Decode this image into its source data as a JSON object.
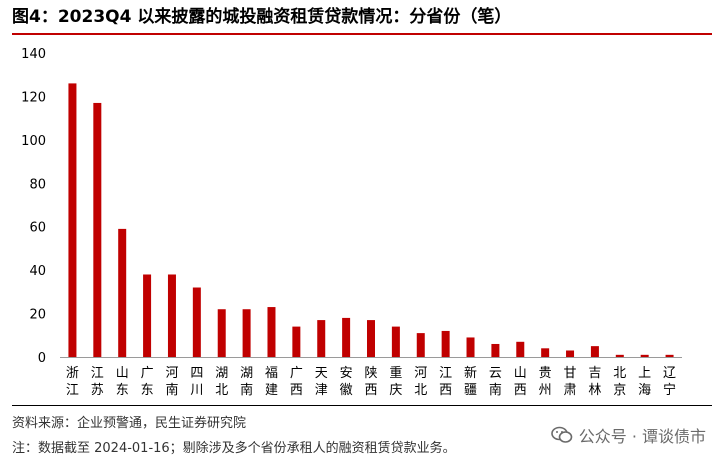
{
  "title": "图4：2023Q4 以来披露的城投融资租赁贷款情况：分省份（笔）",
  "source": "资料来源：企业预警通，民生证券研究院",
  "note": "注：数据截至 2024-01-16；剔除涉及多个省份承租人的融资租赁贷款业务。",
  "watermark": "公众号 · 谭谈债市",
  "watermark_icon": "wechat-icon",
  "colors": {
    "bar": "#c00000",
    "title_rule": "#c00000"
  },
  "chart_data": {
    "type": "bar",
    "categories": [
      "浙江",
      "江苏",
      "山东",
      "广东",
      "河南",
      "四川",
      "湖北",
      "湖南",
      "福建",
      "广西",
      "天津",
      "安徽",
      "陕西",
      "重庆",
      "河北",
      "江西",
      "新疆",
      "云南",
      "山西",
      "贵州",
      "甘肃",
      "吉林",
      "北京",
      "上海",
      "辽宁"
    ],
    "values": [
      126,
      117,
      59,
      38,
      38,
      32,
      22,
      22,
      23,
      14,
      17,
      18,
      17,
      14,
      11,
      12,
      9,
      6,
      7,
      4,
      3,
      5,
      1,
      1,
      1
    ],
    "ylim": [
      0,
      140
    ],
    "yticks": [
      0,
      20,
      40,
      60,
      80,
      100,
      120,
      140
    ],
    "grid": false,
    "legend": "none"
  }
}
